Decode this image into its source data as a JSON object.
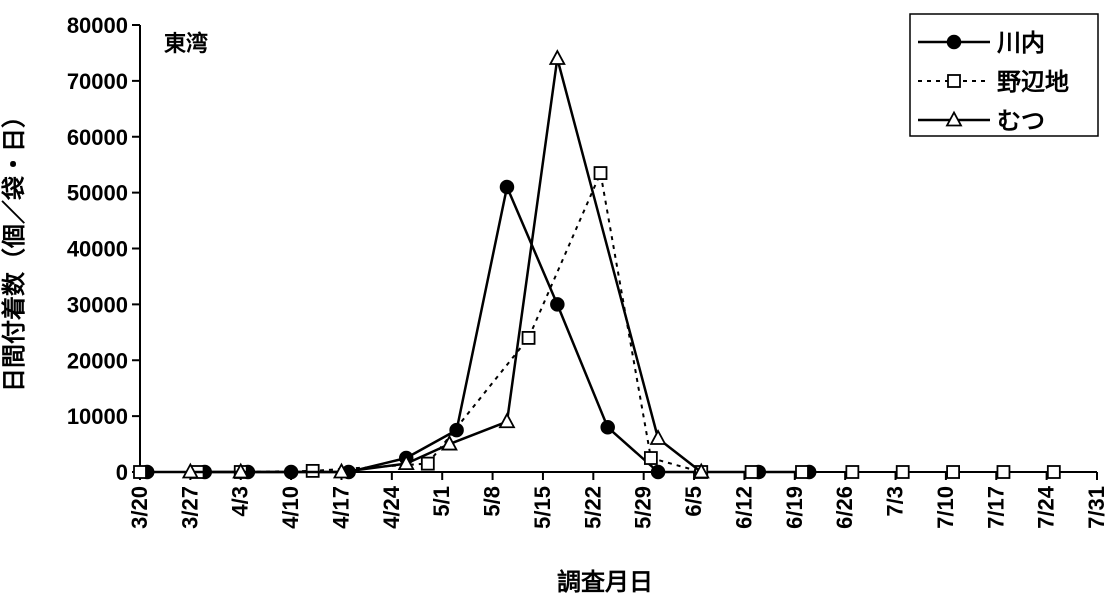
{
  "chart_data": {
    "type": "line",
    "title": "",
    "panel_label": "東湾",
    "xlabel": "調査月日",
    "ylabel": "日間付着数（個／袋・日）",
    "x_axis": {
      "type": "date",
      "min": "3/20",
      "max": "7/31",
      "tick_labels": [
        "3/20",
        "3/27",
        "4/3",
        "4/10",
        "4/17",
        "4/24",
        "5/1",
        "5/8",
        "5/15",
        "5/22",
        "5/29",
        "6/5",
        "6/12",
        "6/19",
        "6/26",
        "7/3",
        "7/10",
        "7/17",
        "7/24",
        "7/31"
      ]
    },
    "y_axis": {
      "min": 0,
      "max": 80000,
      "tick_labels": [
        "0",
        "10000",
        "20000",
        "30000",
        "40000",
        "50000",
        "60000",
        "70000",
        "80000"
      ]
    },
    "grid": false,
    "legend_position": "top-right",
    "series": [
      {
        "name": "川内",
        "line_style": "solid",
        "marker": "filled-circle",
        "points": [
          {
            "x": "3/21",
            "y": 0
          },
          {
            "x": "3/29",
            "y": 0
          },
          {
            "x": "4/4",
            "y": 0
          },
          {
            "x": "4/10",
            "y": 0
          },
          {
            "x": "4/18",
            "y": 0
          },
          {
            "x": "4/26",
            "y": 2500
          },
          {
            "x": "5/3",
            "y": 7500
          },
          {
            "x": "5/10",
            "y": 51000
          },
          {
            "x": "5/17",
            "y": 30000
          },
          {
            "x": "5/24",
            "y": 8000
          },
          {
            "x": "5/31",
            "y": 0
          },
          {
            "x": "6/14",
            "y": 0
          },
          {
            "x": "6/21",
            "y": 0
          }
        ]
      },
      {
        "name": "野辺地",
        "line_style": "dotted",
        "marker": "open-square",
        "points": [
          {
            "x": "3/20",
            "y": 0
          },
          {
            "x": "3/28",
            "y": 0
          },
          {
            "x": "4/3",
            "y": 0
          },
          {
            "x": "4/13",
            "y": 200
          },
          {
            "x": "4/29",
            "y": 1500
          },
          {
            "x": "5/13",
            "y": 24000
          },
          {
            "x": "5/23",
            "y": 53500
          },
          {
            "x": "5/30",
            "y": 2500
          },
          {
            "x": "6/6",
            "y": 0
          },
          {
            "x": "6/13",
            "y": 0
          },
          {
            "x": "6/20",
            "y": 0
          },
          {
            "x": "6/27",
            "y": 0
          },
          {
            "x": "7/4",
            "y": 0
          },
          {
            "x": "7/11",
            "y": 0
          },
          {
            "x": "7/18",
            "y": 0
          },
          {
            "x": "7/25",
            "y": 0
          }
        ]
      },
      {
        "name": "むつ",
        "line_style": "solid",
        "marker": "open-triangle",
        "points": [
          {
            "x": "3/27",
            "y": 0
          },
          {
            "x": "4/3",
            "y": 0
          },
          {
            "x": "4/17",
            "y": 0
          },
          {
            "x": "4/26",
            "y": 1500
          },
          {
            "x": "5/2",
            "y": 5000
          },
          {
            "x": "5/10",
            "y": 9000
          },
          {
            "x": "5/17",
            "y": 74000
          },
          {
            "x": "5/31",
            "y": 6000
          },
          {
            "x": "6/6",
            "y": 0
          }
        ]
      }
    ]
  }
}
